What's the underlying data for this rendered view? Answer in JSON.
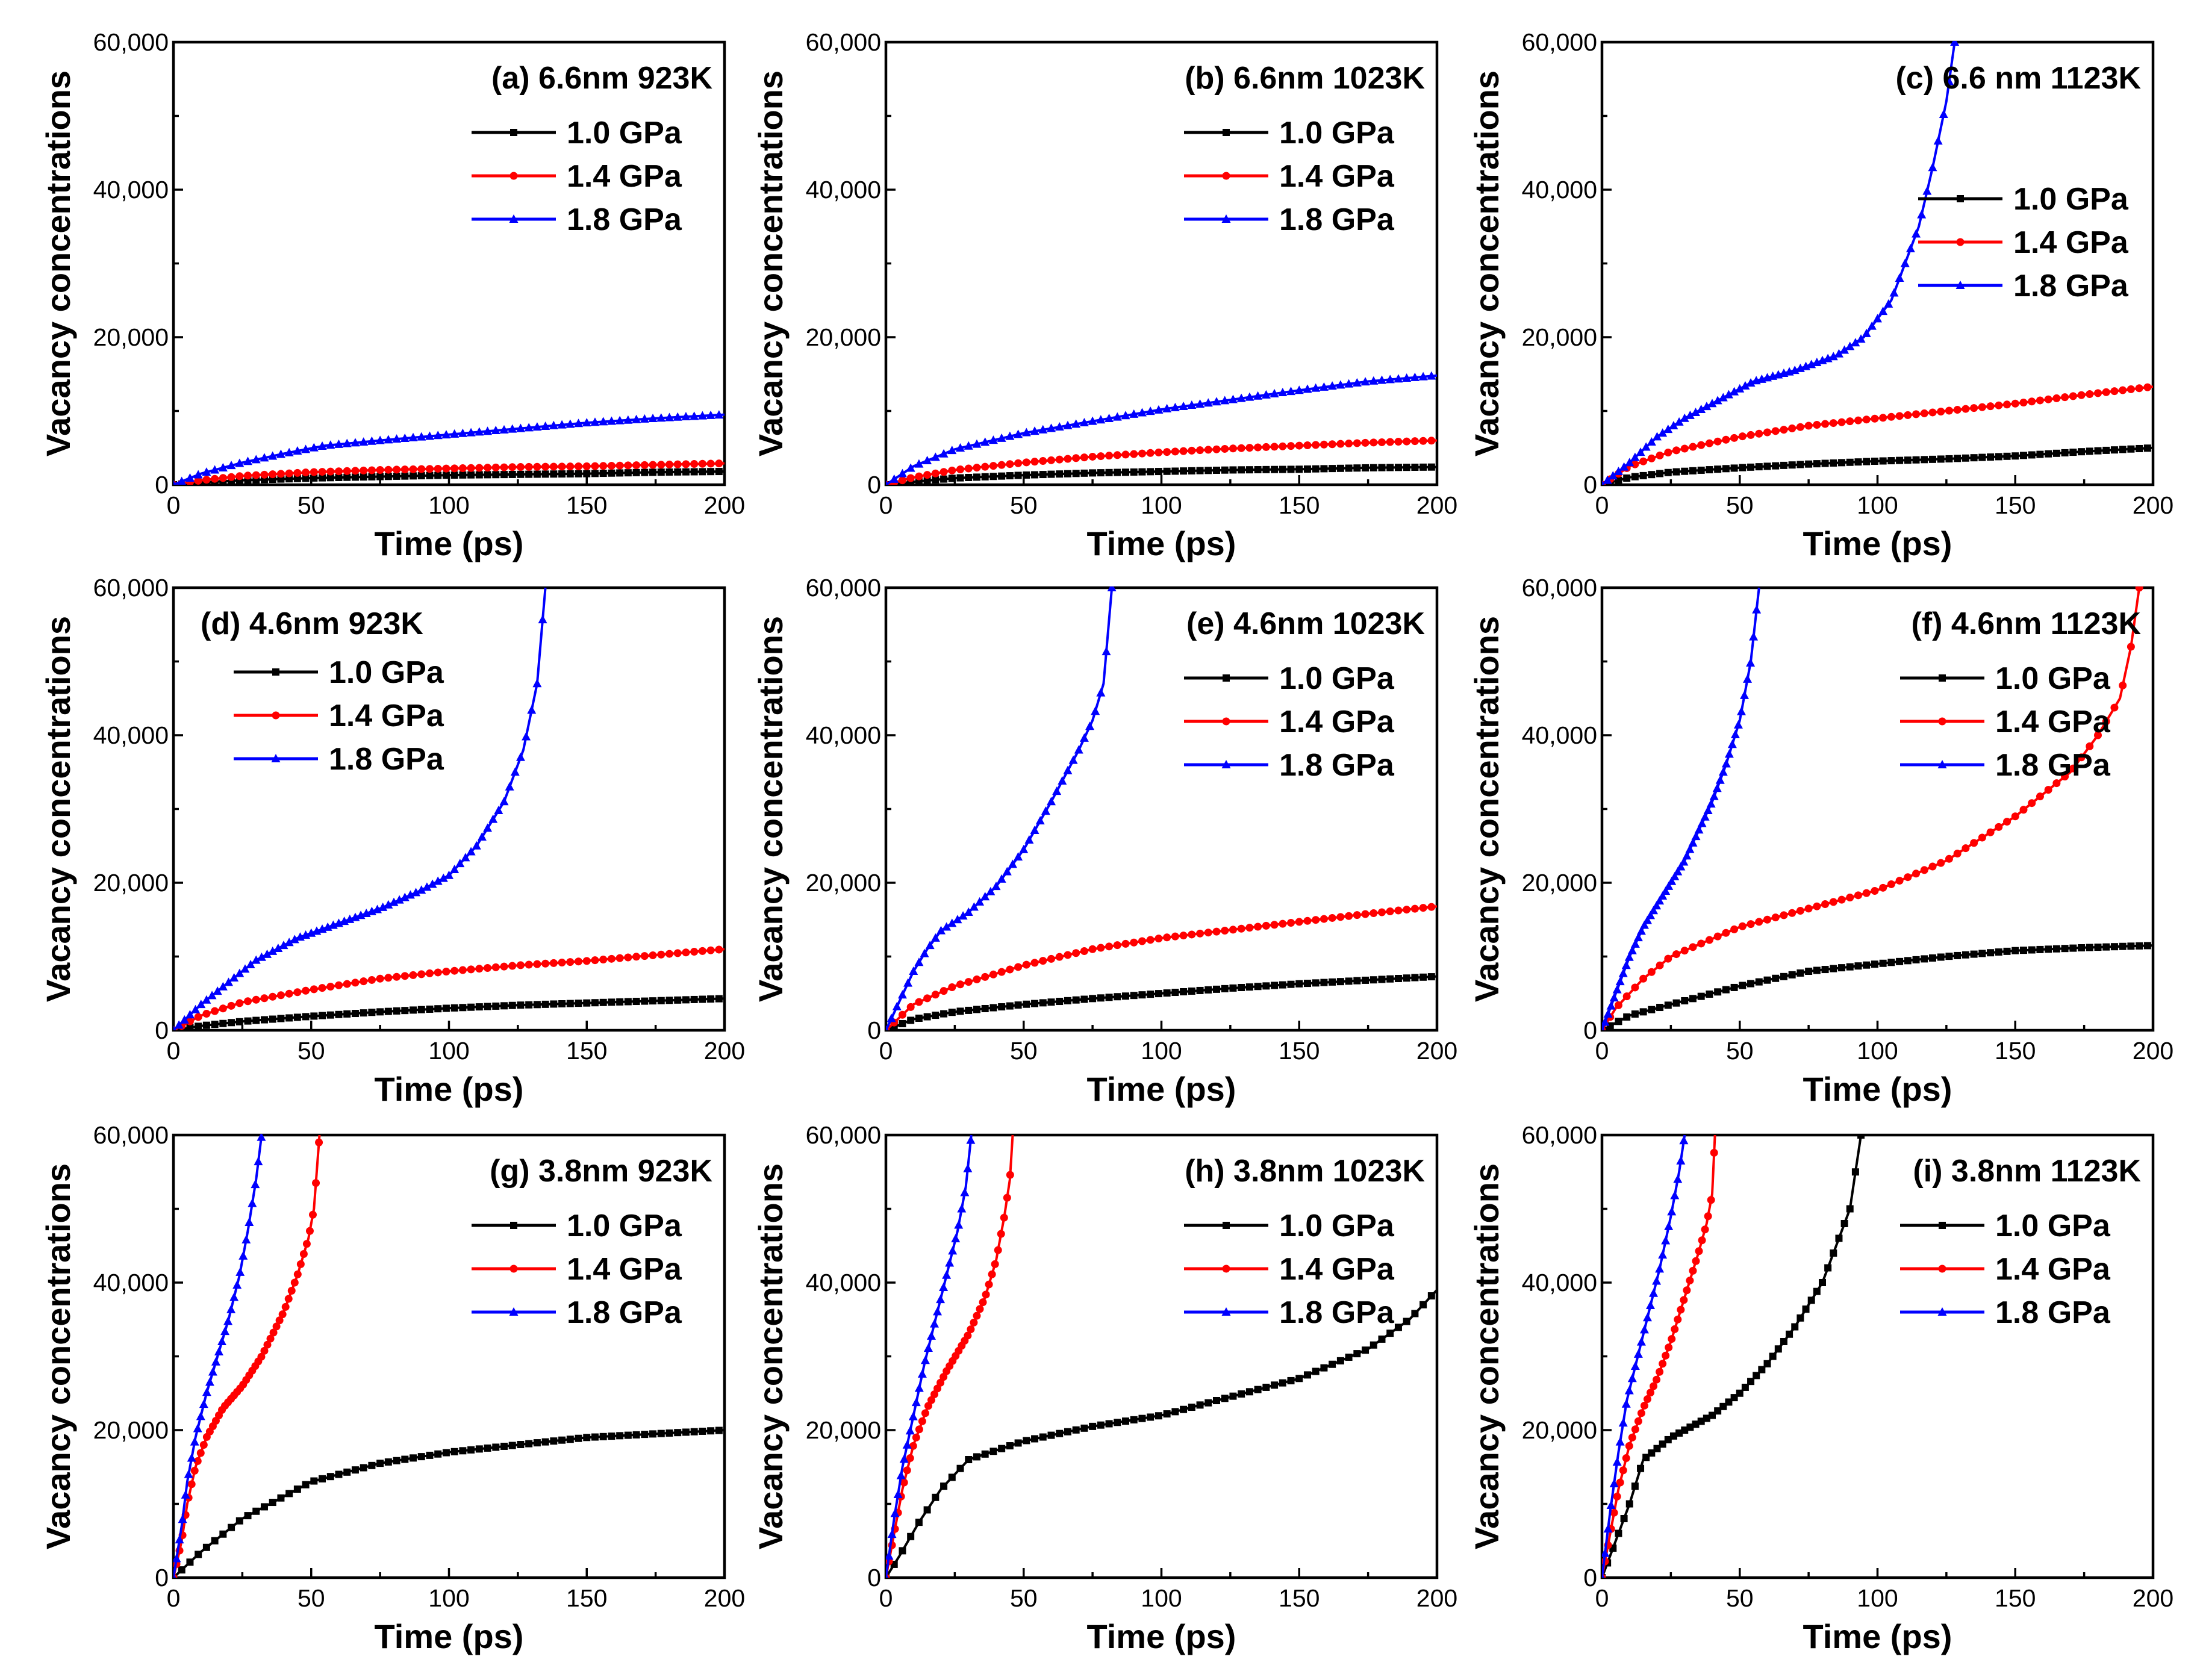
{
  "chart_data": [
    {
      "type": "line",
      "title": "(a) 6.6nm  923K",
      "xlabel": "Time (ps)",
      "ylabel": "Vacancy concentrations",
      "xlim": [
        0,
        200
      ],
      "ylim": [
        0,
        60000
      ],
      "xticks": [
        "0",
        "50",
        "100",
        "150",
        "200"
      ],
      "yticks": [
        "0",
        "20,000",
        "40,000",
        "60,000"
      ],
      "legend_position": "upper-right",
      "series": [
        {
          "name": "1.0 GPa",
          "color": "#000000",
          "marker": "square",
          "x": [
            0,
            10,
            25,
            50,
            75,
            100,
            125,
            150,
            175,
            200
          ],
          "y": [
            0,
            300,
            600,
            900,
            1100,
            1300,
            1400,
            1500,
            1700,
            1800
          ]
        },
        {
          "name": "1.4 GPa",
          "color": "#ff0000",
          "marker": "circle",
          "x": [
            0,
            10,
            25,
            50,
            75,
            100,
            125,
            150,
            175,
            200
          ],
          "y": [
            0,
            600,
            1200,
            1700,
            2000,
            2200,
            2400,
            2500,
            2700,
            2900
          ]
        },
        {
          "name": "1.8 GPa",
          "color": "#0000ff",
          "marker": "triangle",
          "x": [
            0,
            10,
            25,
            40,
            55,
            75,
            100,
            125,
            150,
            175,
            200
          ],
          "y": [
            0,
            1500,
            3000,
            4200,
            5300,
            6000,
            6800,
            7600,
            8400,
            9000,
            9500
          ]
        }
      ]
    },
    {
      "type": "line",
      "title": "(b) 6.6nm  1023K",
      "xlabel": "Time (ps)",
      "ylabel": "Vacancy concentrations",
      "xlim": [
        0,
        200
      ],
      "ylim": [
        0,
        60000
      ],
      "xticks": [
        "0",
        "50",
        "100",
        "150",
        "200"
      ],
      "yticks": [
        "0",
        "20,000",
        "40,000",
        "60,000"
      ],
      "legend_position": "upper-right",
      "series": [
        {
          "name": "1.0 GPa",
          "color": "#000000",
          "marker": "square",
          "x": [
            0,
            10,
            25,
            50,
            75,
            100,
            125,
            150,
            175,
            200
          ],
          "y": [
            0,
            400,
            900,
            1300,
            1600,
            1800,
            2000,
            2100,
            2300,
            2400
          ]
        },
        {
          "name": "1.4 GPa",
          "color": "#ff0000",
          "marker": "circle",
          "x": [
            0,
            10,
            25,
            50,
            75,
            100,
            125,
            150,
            175,
            200
          ],
          "y": [
            0,
            1000,
            2000,
            3000,
            3800,
            4400,
            4900,
            5300,
            5700,
            6000
          ]
        },
        {
          "name": "1.8 GPa",
          "color": "#0000ff",
          "marker": "triangle",
          "x": [
            0,
            10,
            25,
            50,
            75,
            100,
            125,
            150,
            175,
            200
          ],
          "y": [
            0,
            2500,
            4800,
            7000,
            8600,
            10200,
            11500,
            12800,
            14000,
            14800
          ]
        }
      ]
    },
    {
      "type": "line",
      "title": "(c) 6.6 nm  1123K",
      "xlabel": "Time (ps)",
      "ylabel": "Vacancy concentrations",
      "xlim": [
        0,
        200
      ],
      "ylim": [
        0,
        60000
      ],
      "xticks": [
        "0",
        "50",
        "100",
        "150",
        "200"
      ],
      "yticks": [
        "0",
        "20,000",
        "40,000",
        "60,000"
      ],
      "legend_position": "right",
      "series": [
        {
          "name": "1.0 GPa",
          "color": "#000000",
          "marker": "square",
          "x": [
            0,
            10,
            25,
            50,
            75,
            100,
            125,
            150,
            175,
            200
          ],
          "y": [
            0,
            1000,
            1700,
            2300,
            2800,
            3200,
            3500,
            3900,
            4500,
            5000
          ]
        },
        {
          "name": "1.4 GPa",
          "color": "#ff0000",
          "marker": "circle",
          "x": [
            0,
            10,
            25,
            50,
            75,
            100,
            125,
            150,
            175,
            200
          ],
          "y": [
            0,
            2500,
            4500,
            6500,
            8000,
            9000,
            10000,
            11000,
            12200,
            13300
          ]
        },
        {
          "name": "1.8 GPa",
          "color": "#0000ff",
          "marker": "triangle",
          "x": [
            0,
            10,
            20,
            30,
            45,
            55,
            70,
            85,
            95,
            105,
            115,
            120,
            125,
            128
          ],
          "y": [
            0,
            3000,
            6500,
            9000,
            12000,
            14000,
            15500,
            17500,
            20000,
            25000,
            35000,
            43000,
            52000,
            60000
          ]
        }
      ]
    },
    {
      "type": "line",
      "title": "(d) 4.6nm  923K",
      "xlabel": "Time (ps)",
      "ylabel": "Vacancy concentrations",
      "xlim": [
        0,
        200
      ],
      "ylim": [
        0,
        60000
      ],
      "xticks": [
        "0",
        "50",
        "100",
        "150",
        "200"
      ],
      "yticks": [
        "0",
        "20,000",
        "40,000",
        "60,000"
      ],
      "legend_position": "upper-left",
      "series": [
        {
          "name": "1.0 GPa",
          "color": "#000000",
          "marker": "square",
          "x": [
            0,
            10,
            25,
            50,
            75,
            100,
            125,
            150,
            175,
            200
          ],
          "y": [
            0,
            600,
            1200,
            1900,
            2500,
            3000,
            3400,
            3700,
            4000,
            4300
          ]
        },
        {
          "name": "1.4 GPa",
          "color": "#ff0000",
          "marker": "circle",
          "x": [
            0,
            10,
            25,
            50,
            75,
            100,
            125,
            150,
            175,
            200
          ],
          "y": [
            0,
            2000,
            3800,
            5500,
            7000,
            8000,
            8800,
            9400,
            10200,
            11000
          ]
        },
        {
          "name": "1.8 GPa",
          "color": "#0000ff",
          "marker": "triangle",
          "x": [
            0,
            10,
            20,
            30,
            45,
            60,
            75,
            90,
            100,
            110,
            120,
            127,
            132,
            135
          ],
          "y": [
            0,
            3500,
            6500,
            9500,
            12500,
            14500,
            16500,
            19000,
            21000,
            25000,
            31000,
            38000,
            47000,
            60000
          ]
        }
      ]
    },
    {
      "type": "line",
      "title": "(e) 4.6nm  1023K",
      "xlabel": "Time (ps)",
      "ylabel": "Vacancy concentrations",
      "xlim": [
        0,
        200
      ],
      "ylim": [
        0,
        60000
      ],
      "xticks": [
        "0",
        "50",
        "100",
        "150",
        "200"
      ],
      "yticks": [
        "0",
        "20,000",
        "40,000",
        "60,000"
      ],
      "legend_position": "upper-right",
      "series": [
        {
          "name": "1.0 GPa",
          "color": "#000000",
          "marker": "square",
          "x": [
            0,
            10,
            25,
            50,
            75,
            100,
            125,
            150,
            175,
            200
          ],
          "y": [
            0,
            1500,
            2500,
            3500,
            4300,
            5000,
            5700,
            6300,
            6800,
            7300
          ]
        },
        {
          "name": "1.4 GPa",
          "color": "#ff0000",
          "marker": "circle",
          "x": [
            0,
            10,
            25,
            50,
            75,
            100,
            125,
            150,
            175,
            200
          ],
          "y": [
            0,
            3500,
            6000,
            8800,
            11000,
            12500,
            13600,
            14700,
            15800,
            16800
          ]
        },
        {
          "name": "1.8 GPa",
          "color": "#0000ff",
          "marker": "triangle",
          "x": [
            0,
            5,
            10,
            15,
            20,
            30,
            40,
            50,
            60,
            70,
            75,
            79,
            82
          ],
          "y": [
            0,
            4000,
            8000,
            11000,
            13500,
            16000,
            19500,
            24500,
            31000,
            38000,
            42000,
            47000,
            60000
          ]
        }
      ]
    },
    {
      "type": "line",
      "title": "(f) 4.6nm  1123K",
      "xlabel": "Time (ps)",
      "ylabel": "Vacancy concentrations",
      "xlim": [
        0,
        200
      ],
      "ylim": [
        0,
        60000
      ],
      "xticks": [
        "0",
        "50",
        "100",
        "150",
        "200"
      ],
      "yticks": [
        "0",
        "20,000",
        "40,000",
        "60,000"
      ],
      "legend_position": "upper-right",
      "series": [
        {
          "name": "1.0 GPa",
          "color": "#000000",
          "marker": "square",
          "x": [
            0,
            10,
            25,
            50,
            75,
            100,
            125,
            150,
            175,
            200
          ],
          "y": [
            0,
            2000,
            3500,
            6000,
            8000,
            9000,
            10000,
            10800,
            11200,
            11500
          ]
        },
        {
          "name": "1.4 GPa",
          "color": "#ff0000",
          "marker": "circle",
          "x": [
            0,
            5,
            15,
            25,
            50,
            75,
            100,
            125,
            150,
            170,
            180,
            188,
            192,
            195
          ],
          "y": [
            0,
            3000,
            7000,
            10000,
            14000,
            16500,
            19000,
            23000,
            29000,
            35000,
            40000,
            45000,
            52000,
            60000
          ]
        },
        {
          "name": "1.8 GPa",
          "color": "#0000ff",
          "marker": "triangle",
          "x": [
            0,
            5,
            10,
            15,
            20,
            25,
            30,
            35,
            40,
            45,
            50,
            54,
            57
          ],
          "y": [
            0,
            5000,
            10000,
            14000,
            17000,
            20000,
            23000,
            27000,
            31000,
            36000,
            42000,
            50000,
            60000
          ]
        }
      ]
    },
    {
      "type": "line",
      "title": "(g) 3.8nm  923K",
      "xlabel": "Time (ps)",
      "ylabel": "Vacancy concentrations",
      "xlim": [
        0,
        200
      ],
      "ylim": [
        0,
        60000
      ],
      "xticks": [
        "0",
        "50",
        "100",
        "150",
        "200"
      ],
      "yticks": [
        "0",
        "20,000",
        "40,000",
        "60,000"
      ],
      "legend_position": "upper-right",
      "series": [
        {
          "name": "1.0 GPa",
          "color": "#000000",
          "marker": "square",
          "x": [
            0,
            10,
            25,
            50,
            75,
            100,
            125,
            150,
            175,
            200
          ],
          "y": [
            0,
            3500,
            8000,
            13000,
            15500,
            17000,
            18000,
            19000,
            19500,
            20000
          ]
        },
        {
          "name": "1.4 GPa",
          "color": "#ff0000",
          "marker": "circle",
          "x": [
            0,
            3,
            5,
            8,
            12,
            18,
            25,
            32,
            40,
            45,
            49,
            51,
            52,
            53
          ],
          "y": [
            0,
            5000,
            10000,
            15000,
            19000,
            23000,
            26000,
            30000,
            36000,
            41000,
            46000,
            50000,
            55000,
            60000
          ]
        },
        {
          "name": "1.8 GPa",
          "color": "#0000ff",
          "marker": "triangle",
          "x": [
            0,
            3,
            5,
            8,
            12,
            16,
            20,
            24,
            27,
            30,
            32
          ],
          "y": [
            0,
            7000,
            13000,
            19000,
            25000,
            30000,
            35000,
            41000,
            47000,
            54000,
            60000
          ]
        }
      ]
    },
    {
      "type": "line",
      "title": "(h) 3.8nm  1023K",
      "xlabel": "Time (ps)",
      "ylabel": "Vacancy concentrations",
      "xlim": [
        0,
        200
      ],
      "ylim": [
        0,
        60000
      ],
      "xticks": [
        "0",
        "50",
        "100",
        "150",
        "200"
      ],
      "yticks": [
        "0",
        "20,000",
        "40,000",
        "60,000"
      ],
      "legend_position": "upper-right",
      "series": [
        {
          "name": "1.0 GPa",
          "color": "#000000",
          "marker": "square",
          "x": [
            0,
            5,
            12,
            20,
            30,
            50,
            75,
            100,
            125,
            150,
            175,
            190,
            200
          ],
          "y": [
            0,
            3000,
            7500,
            12000,
            16000,
            18500,
            20500,
            22000,
            24500,
            27000,
            31000,
            35000,
            39000
          ]
        },
        {
          "name": "1.4 GPa",
          "color": "#ff0000",
          "marker": "circle",
          "x": [
            0,
            3,
            6,
            10,
            15,
            22,
            30,
            36,
            40,
            43,
            45,
            46
          ],
          "y": [
            0,
            6000,
            12000,
            18000,
            23000,
            28000,
            33000,
            38000,
            43000,
            49000,
            54000,
            60000
          ]
        },
        {
          "name": "1.8 GPa",
          "color": "#0000ff",
          "marker": "triangle",
          "x": [
            0,
            3,
            6,
            10,
            14,
            18,
            22,
            26,
            29,
            31
          ],
          "y": [
            0,
            8000,
            15000,
            22000,
            29000,
            35000,
            41000,
            47000,
            53000,
            60000
          ]
        }
      ]
    },
    {
      "type": "line",
      "title": "(i) 3.8nm  1123K",
      "xlabel": "Time (ps)",
      "ylabel": "Vacancy concentrations",
      "xlim": [
        0,
        200
      ],
      "ylim": [
        0,
        60000
      ],
      "xticks": [
        "0",
        "50",
        "100",
        "150",
        "200"
      ],
      "yticks": [
        "0",
        "20,000",
        "40,000",
        "60,000"
      ],
      "legend_position": "upper-right",
      "series": [
        {
          "name": "1.0 GPa",
          "color": "#000000",
          "marker": "square",
          "x": [
            0,
            5,
            10,
            15,
            25,
            40,
            50,
            60,
            70,
            80,
            85,
            90,
            92,
            94
          ],
          "y": [
            0,
            5000,
            10000,
            16000,
            19000,
            22000,
            25000,
            29000,
            34000,
            40000,
            45000,
            50000,
            55000,
            60000
          ]
        },
        {
          "name": "1.4 GPa",
          "color": "#ff0000",
          "marker": "circle",
          "x": [
            0,
            3,
            6,
            10,
            15,
            20,
            25,
            30,
            35,
            38,
            40,
            41
          ],
          "y": [
            0,
            6000,
            12000,
            18000,
            23000,
            27000,
            32000,
            38000,
            44000,
            48000,
            52000,
            60000
          ]
        },
        {
          "name": "1.8 GPa",
          "color": "#0000ff",
          "marker": "triangle",
          "x": [
            0,
            3,
            6,
            9,
            13,
            17,
            21,
            25,
            28,
            30
          ],
          "y": [
            0,
            9000,
            17000,
            24000,
            30000,
            36000,
            42000,
            49000,
            55000,
            60000
          ]
        }
      ]
    }
  ]
}
